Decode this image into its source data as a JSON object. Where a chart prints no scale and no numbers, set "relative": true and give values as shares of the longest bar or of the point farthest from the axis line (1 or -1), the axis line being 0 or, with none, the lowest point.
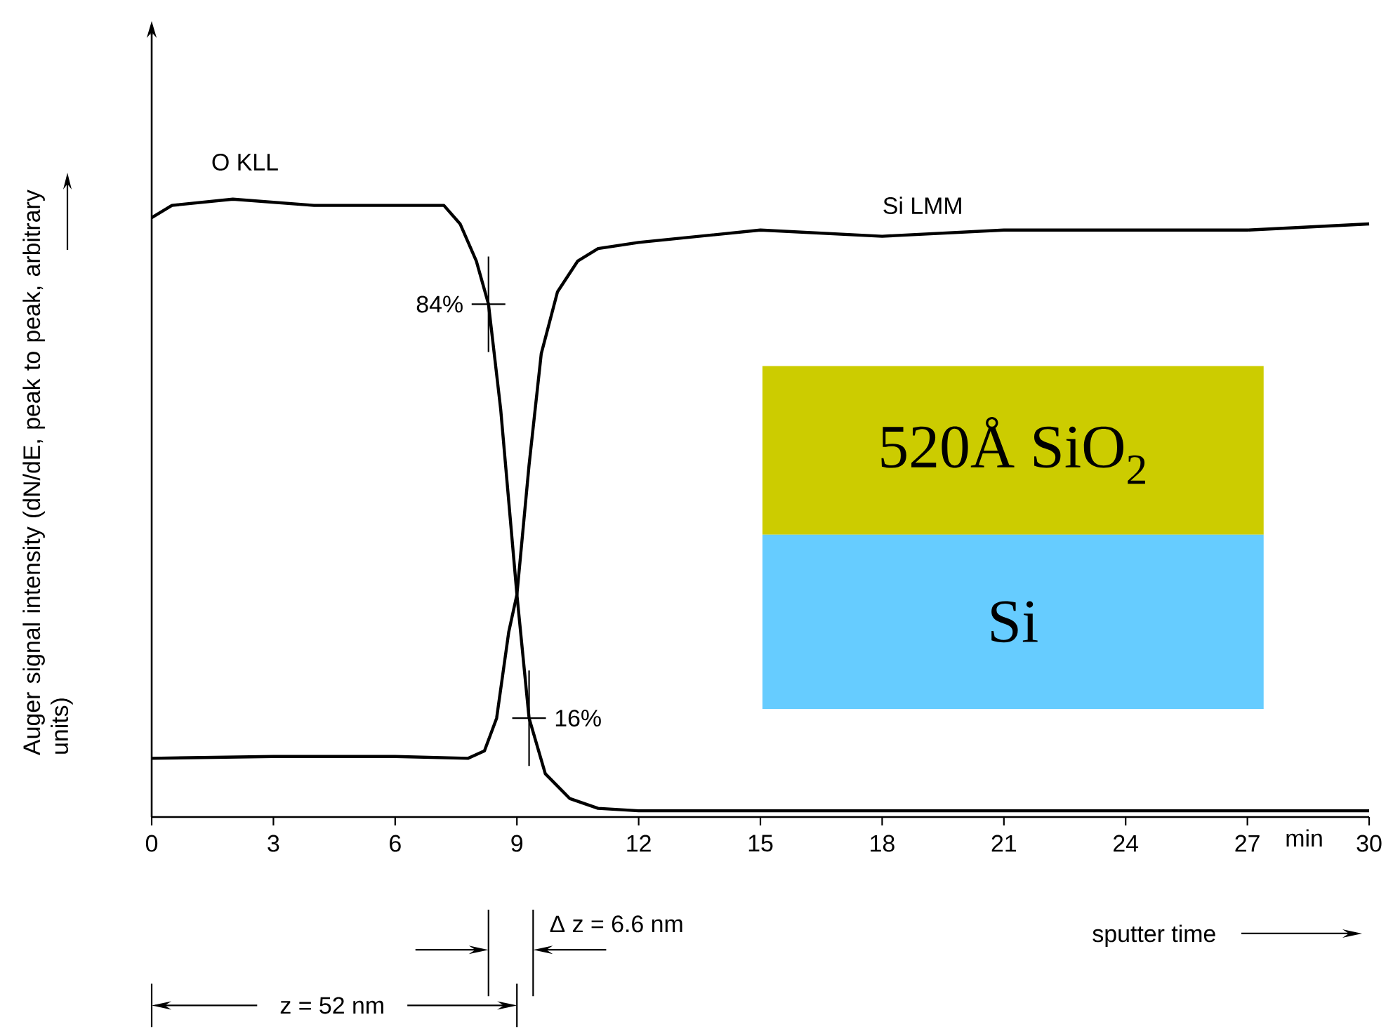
{
  "chart_data": {
    "type": "line",
    "relative": true,
    "xlabel": "sputter time",
    "ylabel": "Auger signal intensity (dN/dE, peak to peak, arbitrary units)",
    "xlim": [
      0,
      30
    ],
    "xticks": [
      0,
      3,
      6,
      9,
      12,
      15,
      18,
      21,
      24,
      27,
      30
    ],
    "x": [
      0,
      0.5,
      2,
      4,
      6,
      7.2,
      7.6,
      8.0,
      8.3,
      8.6,
      9.0,
      9.3,
      9.7,
      10.3,
      11,
      12,
      15,
      18,
      21,
      24,
      27,
      30
    ],
    "series": [
      {
        "name": "O KLL",
        "color": "#000000",
        "values": [
          0.97,
          0.99,
          1.0,
          0.99,
          0.99,
          0.99,
          0.96,
          0.9,
          0.83,
          0.66,
          0.36,
          0.16,
          0.07,
          0.03,
          0.014,
          0.01,
          0.01,
          0.01,
          0.01,
          0.01,
          0.01,
          0.01
        ]
      },
      {
        "name": "Si LMM",
        "color": "#000000",
        "x": [
          0,
          3,
          6,
          7.8,
          8.2,
          8.5,
          8.8,
          9.0,
          9.3,
          9.6,
          10,
          10.5,
          11,
          12,
          15,
          18,
          21,
          24,
          27,
          30
        ],
        "values": [
          0.095,
          0.098,
          0.098,
          0.095,
          0.107,
          0.16,
          0.3,
          0.36,
          0.57,
          0.75,
          0.85,
          0.9,
          0.92,
          0.93,
          0.95,
          0.94,
          0.95,
          0.95,
          0.95,
          0.96
        ]
      }
    ],
    "annotations": [
      {
        "text": "84%",
        "x": 8.3,
        "y": 0.83
      },
      {
        "text": "16%",
        "x": 9.3,
        "y": 0.16
      },
      "min",
      "Δ z = 6.6 nm",
      "z = 52 nm",
      "520Å SiO$_{2}$",
      "Si"
    ],
    "grid": false,
    "legend": false,
    "marker": "none",
    "line_style": "solid"
  }
}
